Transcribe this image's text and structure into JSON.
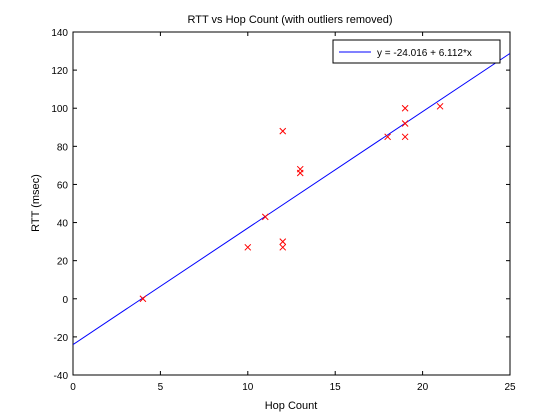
{
  "chart_data": {
    "type": "scatter",
    "title": "RTT vs Hop Count (with outliers removed)",
    "xlabel": "Hop Count",
    "ylabel": "RTT (msec)",
    "xlim": [
      0,
      25
    ],
    "ylim": [
      -40,
      140
    ],
    "x_ticks": [
      0,
      5,
      10,
      15,
      20,
      25
    ],
    "y_ticks": [
      -40,
      -20,
      0,
      20,
      40,
      60,
      80,
      100,
      120,
      140
    ],
    "x_tick_labels": [
      "0",
      "5",
      "10",
      "15",
      "20",
      "25"
    ],
    "y_tick_labels": [
      "-40",
      "-20",
      "0",
      "20",
      "40",
      "60",
      "80",
      "100",
      "120",
      "140"
    ],
    "grid": false,
    "legend_position": "top-right",
    "series": [
      {
        "kind": "scatter",
        "marker": "x",
        "color": "#ff0000",
        "points": [
          {
            "x": 4,
            "y": 0
          },
          {
            "x": 10,
            "y": 27
          },
          {
            "x": 11,
            "y": 43
          },
          {
            "x": 12,
            "y": 30
          },
          {
            "x": 12,
            "y": 27
          },
          {
            "x": 12,
            "y": 88
          },
          {
            "x": 13,
            "y": 68
          },
          {
            "x": 13,
            "y": 66
          },
          {
            "x": 18,
            "y": 85
          },
          {
            "x": 19,
            "y": 100
          },
          {
            "x": 19,
            "y": 92
          },
          {
            "x": 19,
            "y": 85
          },
          {
            "x": 21,
            "y": 101
          }
        ]
      },
      {
        "kind": "line",
        "name": "y = -24.016 + 6.112*x",
        "color": "#0000ff",
        "intercept": -24.016,
        "slope": 6.112,
        "x_range": [
          0,
          25
        ]
      }
    ]
  }
}
